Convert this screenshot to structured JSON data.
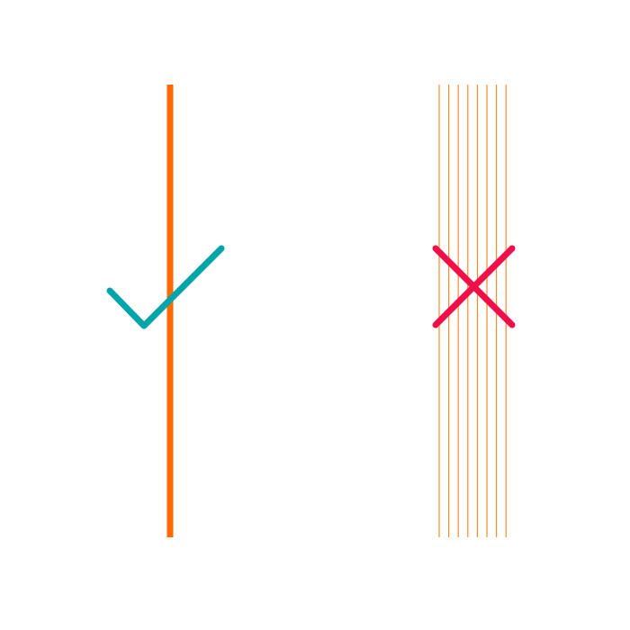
{
  "colors": {
    "background": "#ffffff",
    "good_line": "#ff6a00",
    "bad_lines": "#ff8a2a",
    "check_mark": "#00a4aa",
    "cross_mark": "#ef0f49"
  },
  "panels": [
    {
      "id": "good-example",
      "description_icon": "check-icon",
      "line_count": 1
    },
    {
      "id": "bad-example",
      "description_icon": "cross-icon",
      "line_count": 8
    }
  ]
}
